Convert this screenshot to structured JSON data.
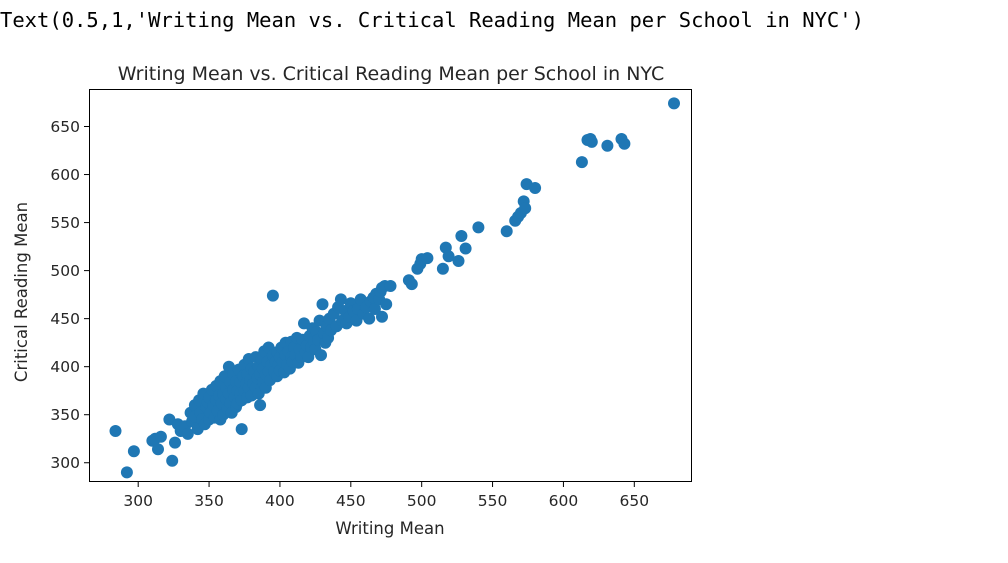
{
  "output_text": "Text(0.5,1,'Writing Mean vs. Critical Reading Mean per School in NYC')",
  "chart_data": {
    "type": "scatter",
    "title": "Writing Mean vs. Critical Reading Mean per School in NYC",
    "xlabel": "Writing Mean",
    "ylabel": "Critical Reading Mean",
    "xlim": [
      266,
      690
    ],
    "ylim": [
      281,
      688
    ],
    "xticks": [
      300,
      350,
      400,
      450,
      500,
      550,
      600,
      650
    ],
    "yticks": [
      300,
      350,
      400,
      450,
      500,
      550,
      600,
      650
    ],
    "grid": false,
    "marker_color": "#1f77b4",
    "series": [
      {
        "points": [
          [
            284,
            333
          ],
          [
            292,
            290
          ],
          [
            297,
            312
          ],
          [
            310,
            323
          ],
          [
            312,
            325
          ],
          [
            314,
            314
          ],
          [
            316,
            327
          ],
          [
            322,
            345
          ],
          [
            324,
            302
          ],
          [
            326,
            321
          ],
          [
            328,
            340
          ],
          [
            330,
            333
          ],
          [
            333,
            338
          ],
          [
            335,
            330
          ],
          [
            337,
            352
          ],
          [
            338,
            343
          ],
          [
            340,
            360
          ],
          [
            340,
            348
          ],
          [
            342,
            335
          ],
          [
            343,
            365
          ],
          [
            344,
            352
          ],
          [
            345,
            345
          ],
          [
            346,
            372
          ],
          [
            347,
            340
          ],
          [
            348,
            358
          ],
          [
            349,
            363
          ],
          [
            350,
            345
          ],
          [
            350,
            368
          ],
          [
            351,
            352
          ],
          [
            352,
            376
          ],
          [
            353,
            360
          ],
          [
            354,
            347
          ],
          [
            355,
            365
          ],
          [
            355,
            380
          ],
          [
            356,
            354
          ],
          [
            357,
            370
          ],
          [
            358,
            345
          ],
          [
            358,
            385
          ],
          [
            359,
            362
          ],
          [
            360,
            372
          ],
          [
            360,
            350
          ],
          [
            361,
            390
          ],
          [
            362,
            366
          ],
          [
            362,
            378
          ],
          [
            363,
            356
          ],
          [
            364,
            400
          ],
          [
            364,
            372
          ],
          [
            365,
            384
          ],
          [
            365,
            362
          ],
          [
            366,
            352
          ],
          [
            367,
            376
          ],
          [
            367,
            392
          ],
          [
            368,
            368
          ],
          [
            369,
            358
          ],
          [
            369,
            385
          ],
          [
            370,
            375
          ],
          [
            370,
            362
          ],
          [
            371,
            397
          ],
          [
            372,
            372
          ],
          [
            372,
            384
          ],
          [
            373,
            335
          ],
          [
            373,
            365
          ],
          [
            374,
            390
          ],
          [
            375,
            375
          ],
          [
            375,
            402
          ],
          [
            376,
            382
          ],
          [
            377,
            368
          ],
          [
            377,
            392
          ],
          [
            378,
            378
          ],
          [
            378,
            408
          ],
          [
            379,
            386
          ],
          [
            380,
            370
          ],
          [
            380,
            398
          ],
          [
            381,
            382
          ],
          [
            382,
            395
          ],
          [
            383,
            378
          ],
          [
            383,
            410
          ],
          [
            384,
            388
          ],
          [
            385,
            372
          ],
          [
            385,
            400
          ],
          [
            386,
            360
          ],
          [
            386,
            392
          ],
          [
            387,
            408
          ],
          [
            388,
            384
          ],
          [
            388,
            398
          ],
          [
            389,
            416
          ],
          [
            390,
            392
          ],
          [
            390,
            378
          ],
          [
            391,
            405
          ],
          [
            392,
            395
          ],
          [
            392,
            420
          ],
          [
            393,
            386
          ],
          [
            394,
            402
          ],
          [
            395,
            412
          ],
          [
            395,
            474
          ],
          [
            396,
            395
          ],
          [
            397,
            405
          ],
          [
            398,
            390
          ],
          [
            398,
            415
          ],
          [
            399,
            402
          ],
          [
            400,
            410
          ],
          [
            400,
            396
          ],
          [
            401,
            420
          ],
          [
            402,
            405
          ],
          [
            403,
            394
          ],
          [
            404,
            412
          ],
          [
            404,
            425
          ],
          [
            405,
            402
          ],
          [
            406,
            416
          ],
          [
            407,
            398
          ],
          [
            408,
            410
          ],
          [
            408,
            426
          ],
          [
            409,
            405
          ],
          [
            410,
            420
          ],
          [
            411,
            412
          ],
          [
            412,
            430
          ],
          [
            413,
            404
          ],
          [
            414,
            418
          ],
          [
            415,
            410
          ],
          [
            416,
            428
          ],
          [
            417,
            445
          ],
          [
            418,
            415
          ],
          [
            419,
            422
          ],
          [
            420,
            410
          ],
          [
            421,
            432
          ],
          [
            422,
            420
          ],
          [
            423,
            440
          ],
          [
            424,
            426
          ],
          [
            425,
            418
          ],
          [
            426,
            436
          ],
          [
            427,
            428
          ],
          [
            428,
            448
          ],
          [
            429,
            412
          ],
          [
            430,
            465
          ],
          [
            431,
            435
          ],
          [
            432,
            425
          ],
          [
            433,
            442
          ],
          [
            434,
            430
          ],
          [
            435,
            450
          ],
          [
            436,
            438
          ],
          [
            438,
            455
          ],
          [
            440,
            442
          ],
          [
            441,
            462
          ],
          [
            443,
            470
          ],
          [
            444,
            448
          ],
          [
            446,
            458
          ],
          [
            447,
            445
          ],
          [
            449,
            452
          ],
          [
            450,
            466
          ],
          [
            452,
            458
          ],
          [
            454,
            448
          ],
          [
            455,
            460
          ],
          [
            457,
            470
          ],
          [
            459,
            455
          ],
          [
            461,
            462
          ],
          [
            463,
            450
          ],
          [
            464,
            468
          ],
          [
            466,
            472
          ],
          [
            467,
            460
          ],
          [
            468,
            476
          ],
          [
            470,
            470
          ],
          [
            471,
            478
          ],
          [
            472,
            482
          ],
          [
            474,
            484
          ],
          [
            475,
            465
          ],
          [
            472,
            452
          ],
          [
            478,
            484
          ],
          [
            491,
            490
          ],
          [
            493,
            486
          ],
          [
            497,
            502
          ],
          [
            499,
            507
          ],
          [
            500,
            512
          ],
          [
            504,
            513
          ],
          [
            515,
            502
          ],
          [
            517,
            524
          ],
          [
            519,
            515
          ],
          [
            526,
            510
          ],
          [
            528,
            536
          ],
          [
            531,
            523
          ],
          [
            540,
            545
          ],
          [
            560,
            541
          ],
          [
            566,
            552
          ],
          [
            568,
            556
          ],
          [
            570,
            560
          ],
          [
            572,
            572
          ],
          [
            573,
            565
          ],
          [
            574,
            590
          ],
          [
            580,
            586
          ],
          [
            613,
            613
          ],
          [
            617,
            636
          ],
          [
            619,
            637
          ],
          [
            620,
            634
          ],
          [
            631,
            630
          ],
          [
            641,
            637
          ],
          [
            643,
            632
          ],
          [
            678,
            674
          ]
        ]
      }
    ]
  }
}
